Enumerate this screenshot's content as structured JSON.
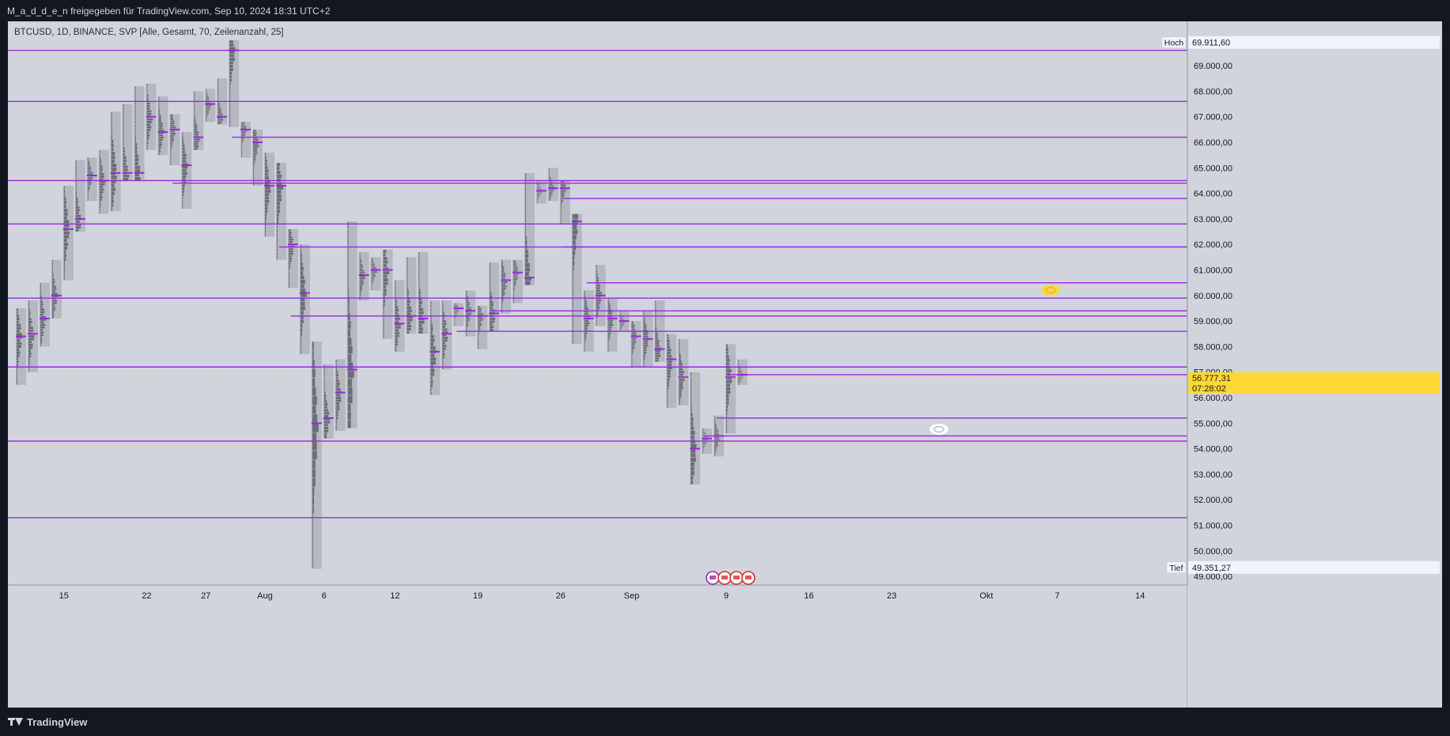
{
  "header": {
    "share_text": "M_a_d_d_e_n freigegeben für TradingView.com, Sep 10, 2024 18:31 UTC+2"
  },
  "legend": {
    "text": "BTCUSD, 1D, BINANCE, SVP [Alle, Gesamt, 70, Zeilenanzahl, 25]"
  },
  "footer": {
    "brand": "TradingView"
  },
  "colors": {
    "chart_bg": "#d1d4dc",
    "frame_bg": "#131722",
    "profile_box": "#b2b5be",
    "volume_bar": "#5d606b",
    "poc_line": "#9c27e0",
    "price_line": "#fdd835",
    "current_price_bg": "#fdd835"
  },
  "icons": [
    "eye-icon",
    "event-flag-icon",
    "us-flag-icon",
    "tradingview-logo-icon"
  ],
  "chart_data": {
    "type": "candlestick-volume-profile",
    "symbol": "BTCUSD",
    "interval": "1D",
    "exchange": "BINANCE",
    "y_axis": {
      "min": 48600,
      "max": 70200,
      "ticks": [
        49000,
        50000,
        51000,
        52000,
        53000,
        54000,
        55000,
        56000,
        57000,
        58000,
        59000,
        60000,
        61000,
        62000,
        63000,
        64000,
        65000,
        66000,
        67000,
        68000,
        69000
      ],
      "tick_labels": [
        "49.000,00",
        "50.000,00",
        "51.000,00",
        "52.000,00",
        "53.000,00",
        "54.000,00",
        "55.000,00",
        "56.000,00",
        "57.000,00",
        "58.000,00",
        "59.000,00",
        "60.000,00",
        "61.000,00",
        "62.000,00",
        "63.000,00",
        "64.000,00",
        "65.000,00",
        "66.000,00",
        "67.000,00",
        "68.000,00",
        "69.000,00"
      ]
    },
    "x_axis": {
      "start_date": "2024-07-11",
      "end_date": "2024-10-21",
      "tick_dates": [
        "2024-07-15",
        "2024-07-22",
        "2024-07-27",
        "2024-08-01",
        "2024-08-06",
        "2024-08-12",
        "2024-08-19",
        "2024-08-26",
        "2024-09-01",
        "2024-09-09",
        "2024-09-16",
        "2024-09-23",
        "2024-10-01",
        "2024-10-07",
        "2024-10-14"
      ],
      "tick_labels": [
        "15",
        "22",
        "27",
        "Aug",
        "6",
        "12",
        "19",
        "26",
        "Sep",
        "9",
        "16",
        "23",
        "Okt",
        "7",
        "14"
      ]
    },
    "high_label": {
      "text": "Hoch",
      "value": 69911.6,
      "value_text": "69.911,60"
    },
    "low_label": {
      "text": "Tief",
      "value": 49351.27,
      "value_text": "49.351,27"
    },
    "current_price": {
      "value": 56777.31,
      "value_text": "56.777,31",
      "countdown_text": "07:28:02"
    },
    "days": [
      {
        "date": "2024-07-11",
        "high": 59500,
        "low": 56500,
        "poc": 58400
      },
      {
        "date": "2024-07-12",
        "high": 59800,
        "low": 57000,
        "poc": 58500
      },
      {
        "date": "2024-07-13",
        "high": 60500,
        "low": 58000,
        "poc": 59100
      },
      {
        "date": "2024-07-14",
        "high": 61400,
        "low": 59100,
        "poc": 60000
      },
      {
        "date": "2024-07-15",
        "high": 64300,
        "low": 60600,
        "poc": 62600
      },
      {
        "date": "2024-07-16",
        "high": 65300,
        "low": 62500,
        "poc": 63000
      },
      {
        "date": "2024-07-17",
        "high": 65400,
        "low": 63700,
        "poc": 64700
      },
      {
        "date": "2024-07-18",
        "high": 65700,
        "low": 63200,
        "poc": 64500
      },
      {
        "date": "2024-07-19",
        "high": 67200,
        "low": 63300,
        "poc": 64800
      },
      {
        "date": "2024-07-20",
        "high": 67500,
        "low": 64500,
        "poc": 64800
      },
      {
        "date": "2024-07-21",
        "high": 68200,
        "low": 64500,
        "poc": 64800
      },
      {
        "date": "2024-07-22",
        "high": 68300,
        "low": 65700,
        "poc": 67000
      },
      {
        "date": "2024-07-23",
        "high": 67800,
        "low": 65500,
        "poc": 66400
      },
      {
        "date": "2024-07-24",
        "high": 67100,
        "low": 65100,
        "poc": 66500
      },
      {
        "date": "2024-07-25",
        "high": 66400,
        "low": 63400,
        "poc": 65100
      },
      {
        "date": "2024-07-26",
        "high": 68000,
        "low": 65700,
        "poc": 66200
      },
      {
        "date": "2024-07-27",
        "high": 68100,
        "low": 66800,
        "poc": 67500
      },
      {
        "date": "2024-07-28",
        "high": 68500,
        "low": 66700,
        "poc": 67000
      },
      {
        "date": "2024-07-29",
        "high": 70000,
        "low": 66600,
        "poc": 69600
      },
      {
        "date": "2024-07-30",
        "high": 66800,
        "low": 65400,
        "poc": 66500
      },
      {
        "date": "2024-07-31",
        "high": 66500,
        "low": 64300,
        "poc": 66000
      },
      {
        "date": "2024-08-01",
        "high": 65600,
        "low": 62300,
        "poc": 64300
      },
      {
        "date": "2024-08-02",
        "high": 65200,
        "low": 61400,
        "poc": 64300
      },
      {
        "date": "2024-08-03",
        "high": 62600,
        "low": 60300,
        "poc": 62000
      },
      {
        "date": "2024-08-04",
        "high": 62000,
        "low": 57700,
        "poc": 60100
      },
      {
        "date": "2024-08-05",
        "high": 58200,
        "low": 49300,
        "poc": 55000
      },
      {
        "date": "2024-08-06",
        "high": 57300,
        "low": 54400,
        "poc": 55200
      },
      {
        "date": "2024-08-07",
        "high": 57500,
        "low": 54700,
        "poc": 56200
      },
      {
        "date": "2024-08-08",
        "high": 62900,
        "low": 54800,
        "poc": 57100
      },
      {
        "date": "2024-08-09",
        "high": 61700,
        "low": 59800,
        "poc": 60800
      },
      {
        "date": "2024-08-10",
        "high": 61500,
        "low": 60200,
        "poc": 61000
      },
      {
        "date": "2024-08-11",
        "high": 61800,
        "low": 58300,
        "poc": 61000
      },
      {
        "date": "2024-08-12",
        "high": 60600,
        "low": 57800,
        "poc": 58900
      },
      {
        "date": "2024-08-13",
        "high": 61500,
        "low": 58500,
        "poc": 59200
      },
      {
        "date": "2024-08-14",
        "high": 61700,
        "low": 58500,
        "poc": 59100
      },
      {
        "date": "2024-08-15",
        "high": 59800,
        "low": 56100,
        "poc": 57800
      },
      {
        "date": "2024-08-16",
        "high": 59800,
        "low": 57100,
        "poc": 58500
      },
      {
        "date": "2024-08-17",
        "high": 59700,
        "low": 58800,
        "poc": 59500
      },
      {
        "date": "2024-08-18",
        "high": 60200,
        "low": 58400,
        "poc": 59400
      },
      {
        "date": "2024-08-19",
        "high": 59600,
        "low": 57900,
        "poc": 59200
      },
      {
        "date": "2024-08-20",
        "high": 61300,
        "low": 58600,
        "poc": 59300
      },
      {
        "date": "2024-08-21",
        "high": 61400,
        "low": 59300,
        "poc": 60600
      },
      {
        "date": "2024-08-22",
        "high": 61400,
        "low": 59700,
        "poc": 60900
      },
      {
        "date": "2024-08-23",
        "high": 64800,
        "low": 60400,
        "poc": 60700
      },
      {
        "date": "2024-08-24",
        "high": 64500,
        "low": 63600,
        "poc": 64100
      },
      {
        "date": "2024-08-25",
        "high": 65000,
        "low": 63700,
        "poc": 64200
      },
      {
        "date": "2024-08-26",
        "high": 64500,
        "low": 62800,
        "poc": 64200
      },
      {
        "date": "2024-08-27",
        "high": 63200,
        "low": 58100,
        "poc": 62900
      },
      {
        "date": "2024-08-28",
        "high": 60200,
        "low": 57800,
        "poc": 59100
      },
      {
        "date": "2024-08-29",
        "high": 61200,
        "low": 58800,
        "poc": 60000
      },
      {
        "date": "2024-08-30",
        "high": 59900,
        "low": 57800,
        "poc": 59100
      },
      {
        "date": "2024-08-31",
        "high": 59400,
        "low": 58600,
        "poc": 59000
      },
      {
        "date": "2024-09-01",
        "high": 59000,
        "low": 57200,
        "poc": 58400
      },
      {
        "date": "2024-09-02",
        "high": 59400,
        "low": 57200,
        "poc": 58300
      },
      {
        "date": "2024-09-03",
        "high": 59800,
        "low": 57400,
        "poc": 57900
      },
      {
        "date": "2024-09-04",
        "high": 58500,
        "low": 55600,
        "poc": 57500
      },
      {
        "date": "2024-09-05",
        "high": 58300,
        "low": 55700,
        "poc": 56800
      },
      {
        "date": "2024-09-06",
        "high": 57000,
        "low": 52600,
        "poc": 54000
      },
      {
        "date": "2024-09-07",
        "high": 54800,
        "low": 53800,
        "poc": 54400
      },
      {
        "date": "2024-09-08",
        "high": 55300,
        "low": 53700,
        "poc": 54500
      },
      {
        "date": "2024-09-09",
        "high": 58100,
        "low": 54600,
        "poc": 56800
      },
      {
        "date": "2024-09-10",
        "high": 57500,
        "low": 56500,
        "poc": 56900
      }
    ],
    "horizontal_lines": [
      {
        "price": 69600,
        "from_date": "2024-07-11"
      },
      {
        "price": 67600,
        "from_date": "2024-07-11"
      },
      {
        "price": 66200,
        "from_date": "2024-07-30"
      },
      {
        "price": 64500,
        "from_date": "2024-07-11"
      },
      {
        "price": 64400,
        "from_date": "2024-07-25"
      },
      {
        "price": 63800,
        "from_date": "2024-08-27"
      },
      {
        "price": 62800,
        "from_date": "2024-07-11"
      },
      {
        "price": 61900,
        "from_date": "2024-08-03"
      },
      {
        "price": 61900,
        "from_date": "2024-08-27"
      },
      {
        "price": 60500,
        "from_date": "2024-08-29"
      },
      {
        "price": 59900,
        "from_date": "2024-07-11"
      },
      {
        "price": 59200,
        "from_date": "2024-08-04"
      },
      {
        "price": 59400,
        "from_date": "2024-08-21"
      },
      {
        "price": 58600,
        "from_date": "2024-08-18"
      },
      {
        "price": 57200,
        "from_date": "2024-07-11"
      },
      {
        "price": 57200,
        "from_date": "2024-08-08"
      },
      {
        "price": 56900,
        "from_date": "2024-09-10"
      },
      {
        "price": 55200,
        "from_date": "2024-09-09"
      },
      {
        "price": 54500,
        "from_date": "2024-09-08"
      },
      {
        "price": 54300,
        "from_date": "2024-07-11"
      },
      {
        "price": 51300,
        "from_date": "2024-07-11"
      }
    ]
  }
}
